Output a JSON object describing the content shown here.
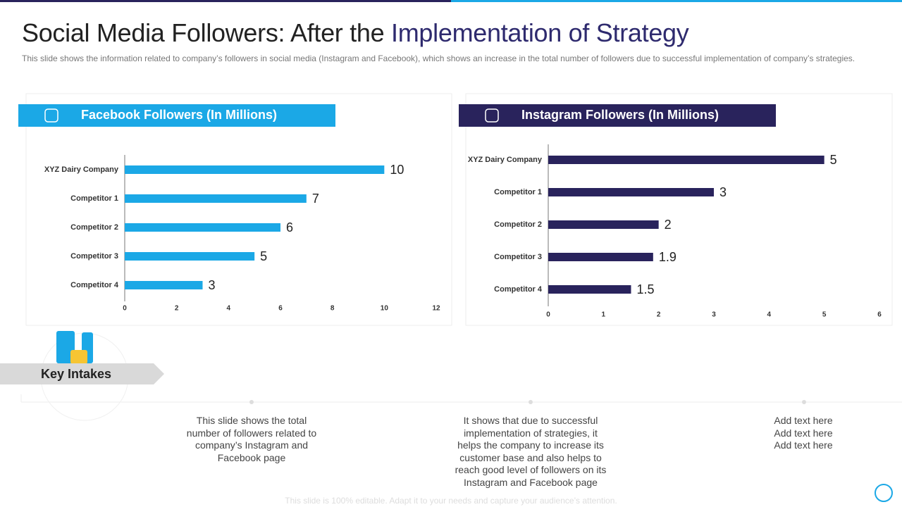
{
  "header": {
    "title_plain": "Social Media Followers: After the",
    "title_highlight": "Implementation of Strategy",
    "description": "This slide shows the information related to company’s followers in social media (Instagram and Facebook), which shows an increase in the total number of followers due to successful implementation of company’s strategies."
  },
  "chart_data": [
    {
      "type": "bar",
      "orientation": "horizontal",
      "title": "Facebook Followers (In Millions)",
      "categories": [
        "XYZ Dairy Company",
        "Competitor 1",
        "Competitor 2",
        "Competitor 3",
        "Competitor 4"
      ],
      "values": [
        10,
        7,
        6,
        5,
        3
      ],
      "color": "#1ba8e6",
      "xlim": [
        0,
        12
      ],
      "xticks": [
        0,
        2,
        4,
        6,
        8,
        10,
        12
      ]
    },
    {
      "type": "bar",
      "orientation": "horizontal",
      "title": "Instagram Followers (In Millions)",
      "categories": [
        "XYZ Dairy Company",
        "Competitor 1",
        "Competitor 2",
        "Competitor 3",
        "Competitor 4"
      ],
      "values": [
        5,
        3,
        2,
        1.9,
        1.5
      ],
      "color": "#29235c",
      "xlim": [
        0,
        6
      ],
      "xticks": [
        0,
        1,
        2,
        3,
        4,
        5,
        6
      ]
    }
  ],
  "key_intakes": {
    "title": "Key Intakes",
    "points": [
      [
        "This slide shows the total number of followers related to company’s Instagram and Facebook page"
      ],
      [
        "It shows that due to successful implementation of strategies, it helps the company to increase its customer base and also helps to reach good level of followers on its Instagram and Facebook page"
      ],
      [
        "Add text here",
        "Add text here",
        "Add text here"
      ]
    ]
  },
  "footer": "This slide is 100% editable. Adapt it to your needs and capture your audience’s attention."
}
